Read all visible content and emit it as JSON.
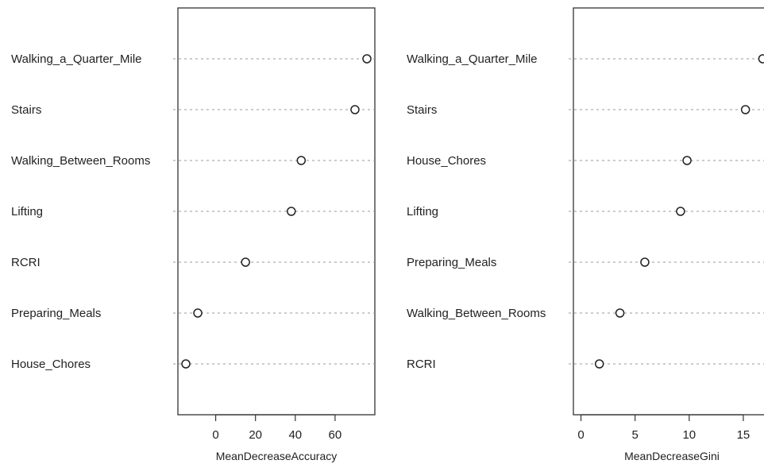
{
  "chart_data": [
    {
      "type": "dot",
      "title": "",
      "xlabel": "MeanDecreaseAccuracy",
      "ylabel": "",
      "xlim": [
        -19,
        80
      ],
      "x_ticks": [
        0,
        20,
        40,
        60
      ],
      "categories": [
        "Walking_a_Quarter_Mile",
        "Stairs",
        "Walking_Between_Rooms",
        "Lifting",
        "RCRI",
        "Preparing_Meals",
        "House_Chores"
      ],
      "values": [
        76,
        70,
        43,
        38,
        15,
        -9,
        -15
      ],
      "grid": "dotted horizontal guide lines",
      "colors": {
        "marker": "#222222",
        "guide": "#9a9a9a"
      }
    },
    {
      "type": "dot",
      "title": "",
      "xlabel": "MeanDecreaseGini",
      "ylabel": "",
      "xlim": [
        -0.7,
        17.5
      ],
      "x_ticks": [
        0,
        5,
        10,
        15
      ],
      "categories": [
        "Walking_a_Quarter_Mile",
        "Stairs",
        "House_Chores",
        "Lifting",
        "Preparing_Meals",
        "Walking_Between_Rooms",
        "RCRI"
      ],
      "values": [
        16.8,
        15.2,
        9.8,
        9.2,
        5.9,
        3.6,
        1.7
      ],
      "grid": "dotted horizontal guide lines",
      "colors": {
        "marker": "#222222",
        "guide": "#9a9a9a"
      }
    }
  ]
}
